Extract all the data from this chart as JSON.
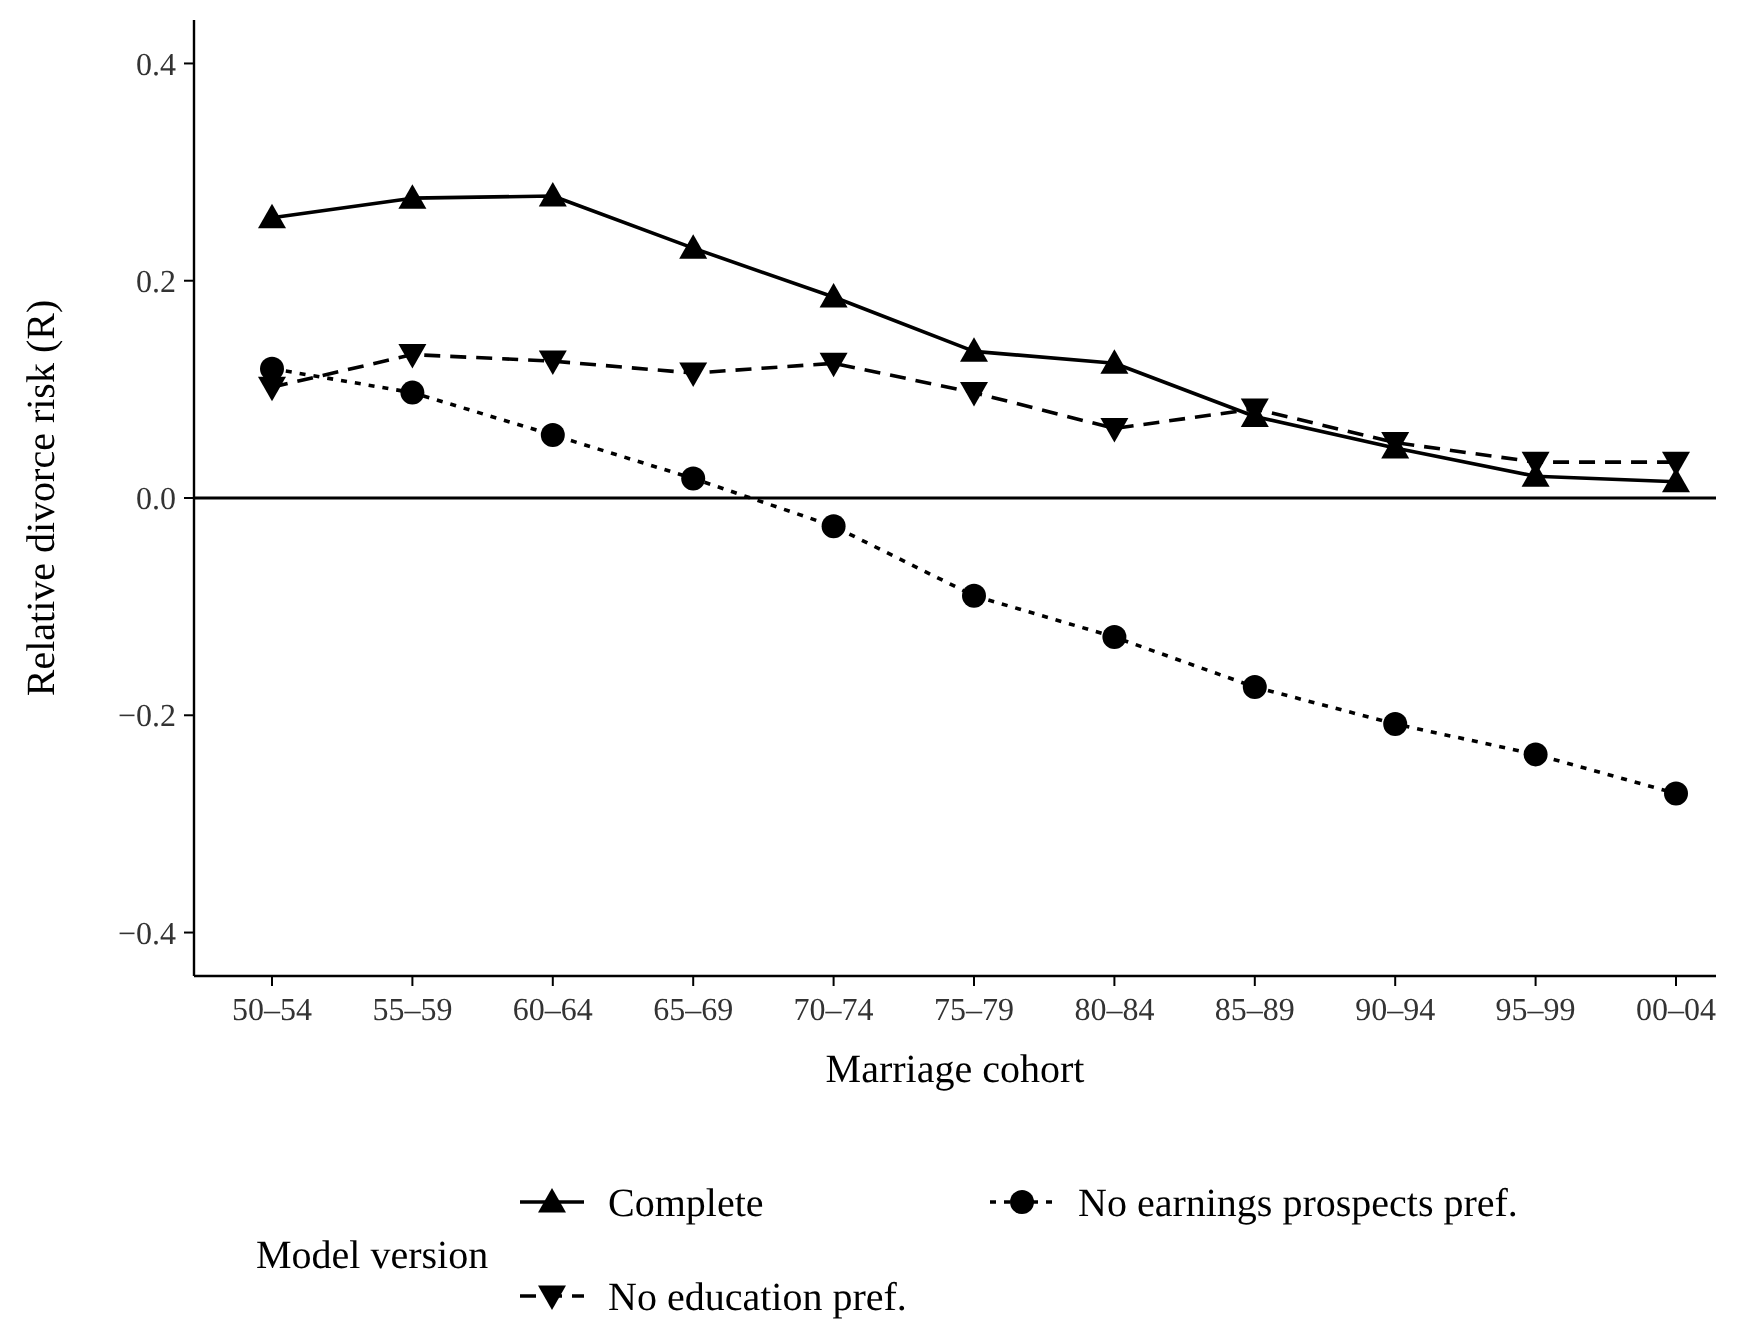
{
  "chart_data": {
    "type": "line",
    "xlabel": "Marriage cohort",
    "ylabel": "Relative divorce risk  (R)",
    "legend_title": "Model version",
    "legend": "bottom",
    "grid": false,
    "categories": [
      "50–54",
      "55–59",
      "60–64",
      "65–69",
      "70–74",
      "75–79",
      "80–84",
      "85–89",
      "90–94",
      "95–99",
      "00–04"
    ],
    "ylim": [
      -0.44,
      0.44
    ],
    "yticks": [
      {
        "value": -0.4,
        "label": "−0.4"
      },
      {
        "value": -0.2,
        "label": "−0.2"
      },
      {
        "value": 0,
        "label": "0.0"
      },
      {
        "value": 0.2,
        "label": "0.2"
      },
      {
        "value": 0.4,
        "label": "0.4"
      }
    ],
    "ref_lines": [
      {
        "axis": "y",
        "value": 0,
        "color": "#000000",
        "line_style": "solid"
      }
    ],
    "series": [
      {
        "name": "Complete",
        "color": "#000000",
        "marker": "triangle",
        "line_style": "solid",
        "values": [
          0.258,
          0.276,
          0.278,
          0.23,
          0.185,
          0.135,
          0.124,
          0.075,
          0.046,
          0.02,
          0.015
        ]
      },
      {
        "name": "No earnings prospects pref.",
        "color": "#000000",
        "marker": "circle",
        "line_style": "dotted",
        "values": [
          0.119,
          0.097,
          0.058,
          0.018,
          -0.026,
          -0.09,
          -0.128,
          -0.174,
          -0.208,
          -0.236,
          -0.272
        ]
      },
      {
        "name": "No education pref.",
        "color": "#000000",
        "marker": "triangle-down",
        "line_style": "dashed",
        "values": [
          0.102,
          0.132,
          0.126,
          0.115,
          0.124,
          0.097,
          0.064,
          0.082,
          0.051,
          0.033,
          0.033
        ]
      }
    ]
  }
}
